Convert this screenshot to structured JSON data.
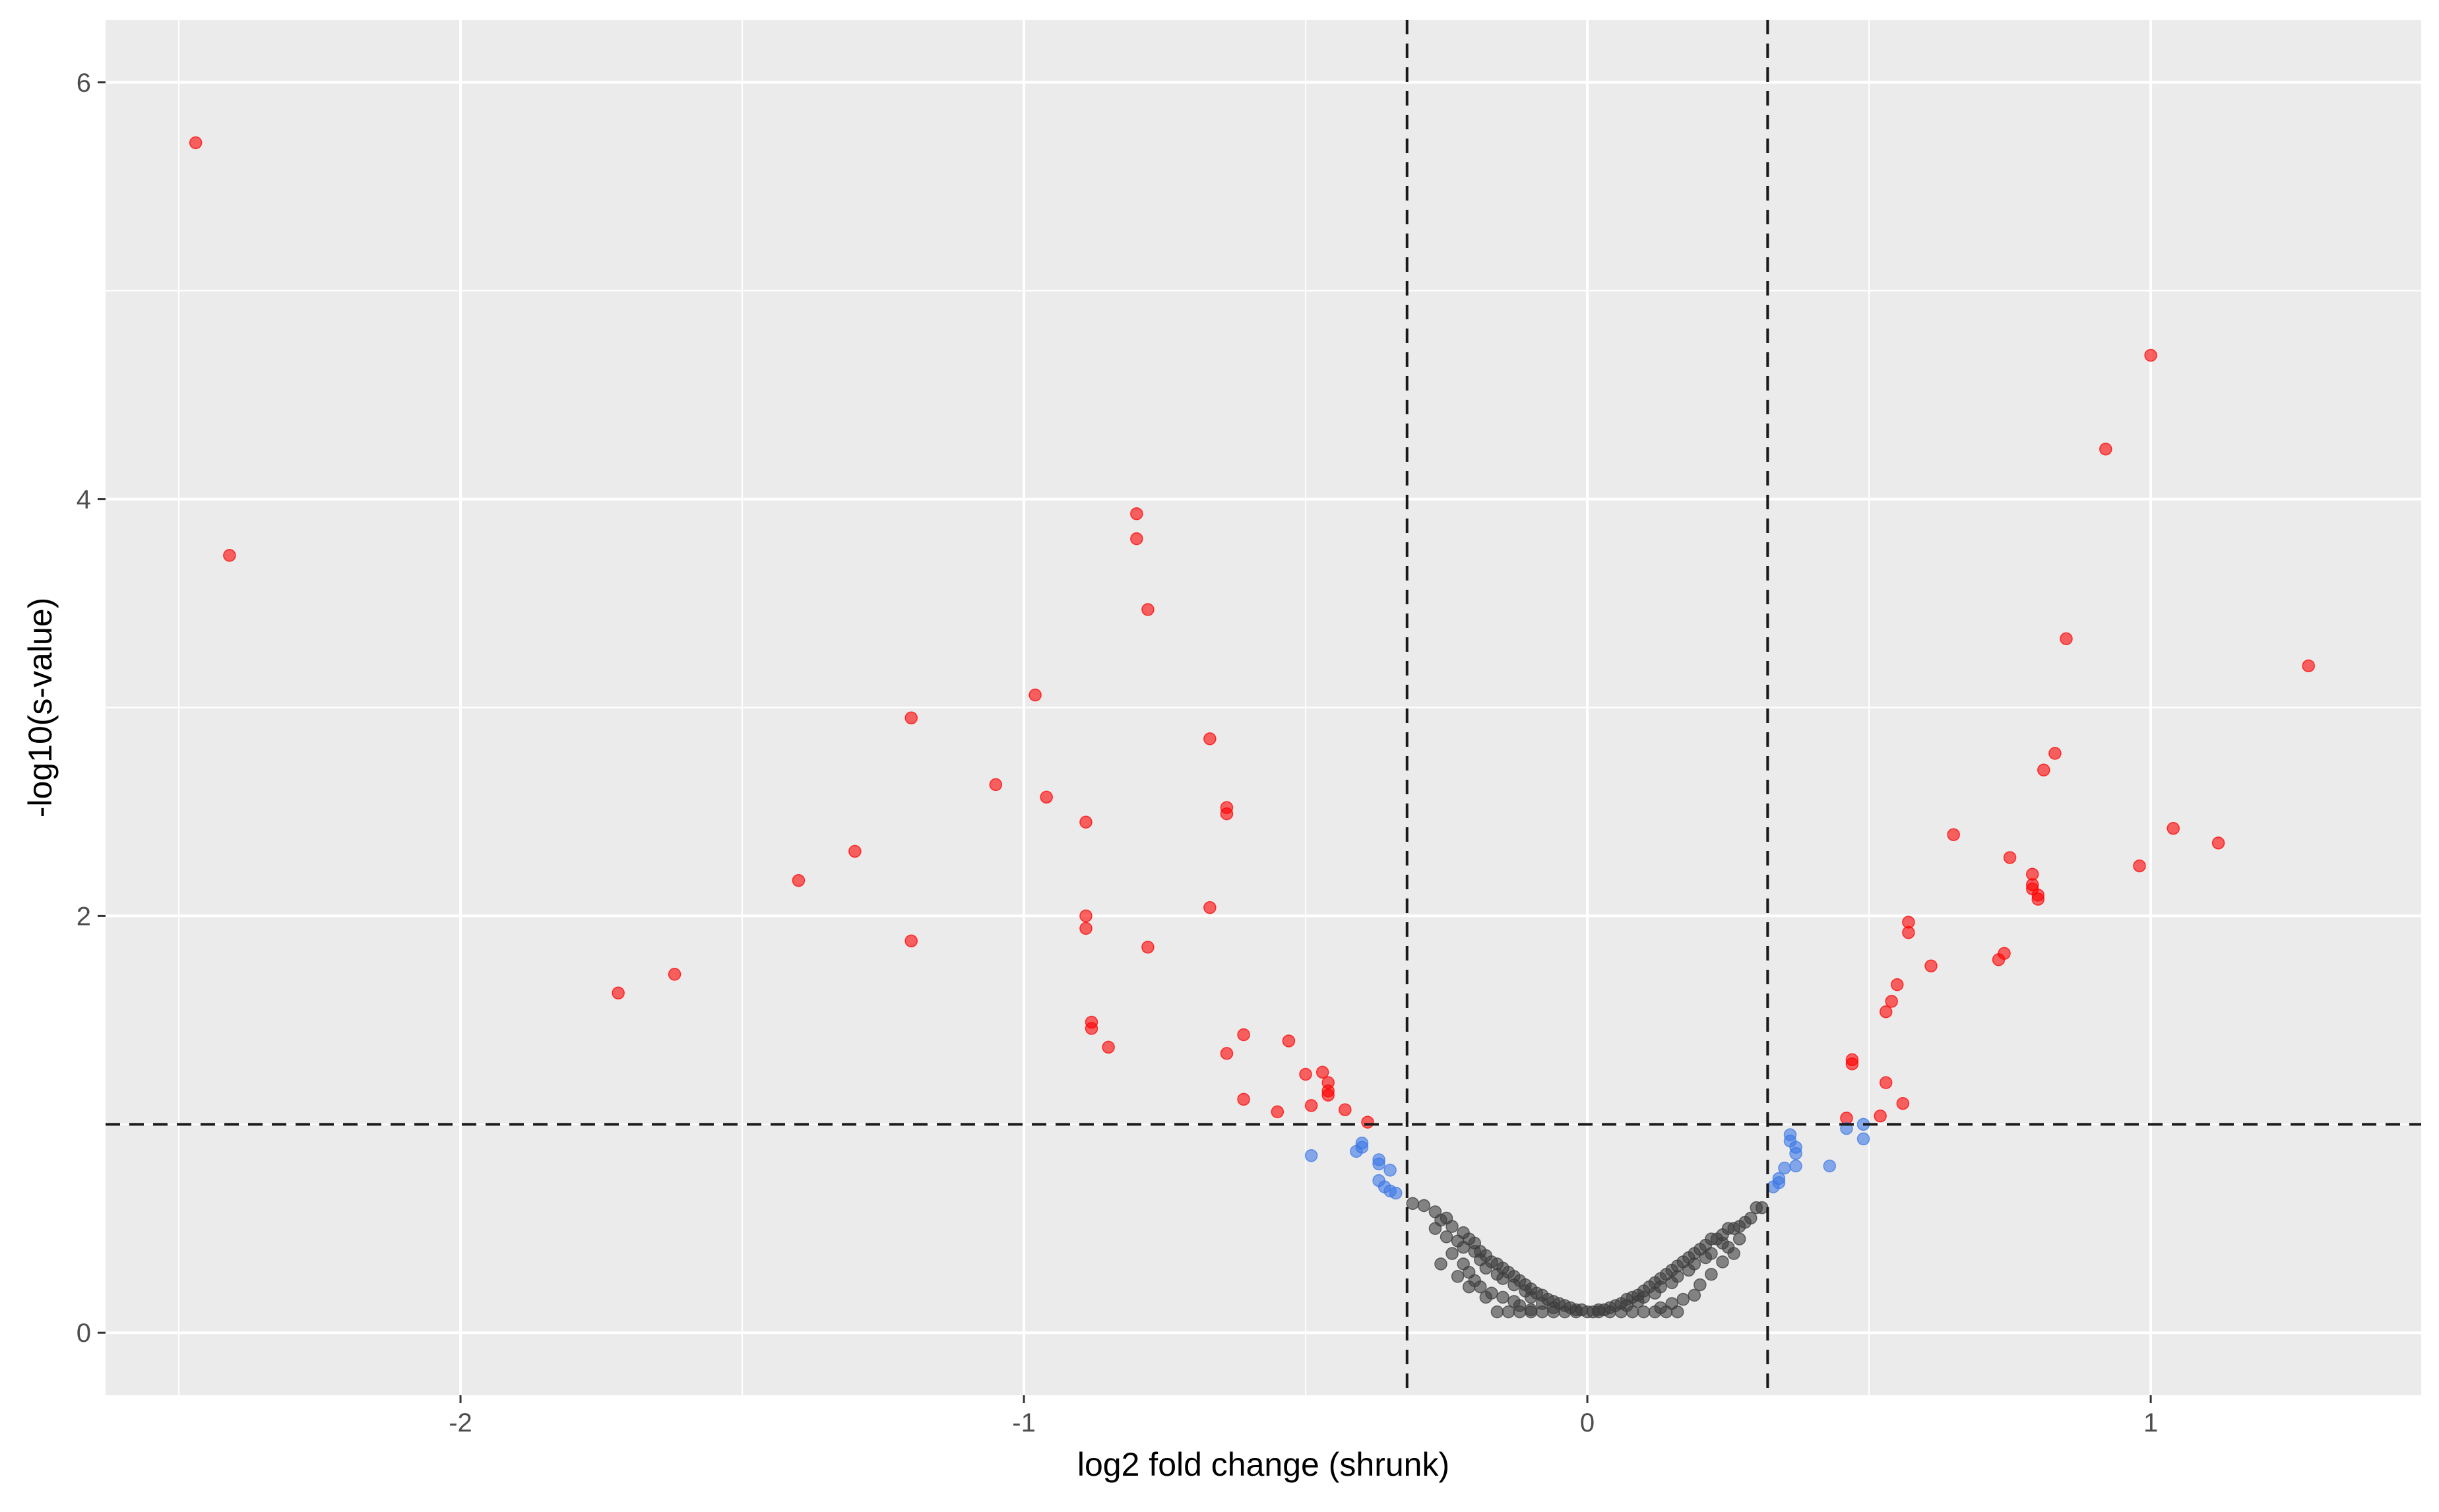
{
  "chart_data": {
    "type": "scatter",
    "xlabel": "log2 fold change (shrunk)",
    "ylabel": "-log10(s-value)",
    "xlim": [
      -2.63,
      1.48
    ],
    "ylim": [
      -0.3,
      6.3
    ],
    "x_ticks": [
      -2,
      -1,
      0,
      1
    ],
    "x_tick_labels": [
      "-2",
      "-1",
      "0",
      "1"
    ],
    "y_ticks": [
      0,
      2,
      4,
      6
    ],
    "y_tick_labels": [
      "0",
      "2",
      "4",
      "6"
    ],
    "grid": true,
    "legend": "none",
    "threshold_lines": {
      "vertical": [
        -0.32,
        0.32
      ],
      "horizontal": [
        1.0
      ],
      "style": "dashed"
    },
    "colors": {
      "panel_background": "#ebebeb",
      "grid": "#ffffff",
      "significant": "#ff0000",
      "fold_change_only": "#3c78e6",
      "not_significant": "#3c3c3c",
      "threshold_line": "#1a1a1a"
    },
    "series": [
      {
        "color": "#ff0000",
        "points": [
          [
            -2.47,
            5.71
          ],
          [
            -2.41,
            3.73
          ],
          [
            -1.72,
            1.63
          ],
          [
            -1.62,
            1.72
          ],
          [
            -1.4,
            2.17
          ],
          [
            -1.3,
            2.31
          ],
          [
            -1.2,
            2.95
          ],
          [
            -1.2,
            1.88
          ],
          [
            -1.05,
            2.63
          ],
          [
            -0.98,
            3.06
          ],
          [
            -0.96,
            2.57
          ],
          [
            -0.89,
            2.45
          ],
          [
            -0.89,
            2.0
          ],
          [
            -0.89,
            1.94
          ],
          [
            -0.88,
            1.49
          ],
          [
            -0.88,
            1.46
          ],
          [
            -0.85,
            1.37
          ],
          [
            -0.8,
            3.93
          ],
          [
            -0.8,
            3.81
          ],
          [
            -0.78,
            3.47
          ],
          [
            -0.78,
            1.85
          ],
          [
            -0.67,
            2.85
          ],
          [
            -0.67,
            2.04
          ],
          [
            -0.64,
            2.52
          ],
          [
            -0.64,
            2.49
          ],
          [
            -0.64,
            1.34
          ],
          [
            -0.61,
            1.43
          ],
          [
            -0.61,
            1.12
          ],
          [
            -0.55,
            1.06
          ],
          [
            -0.53,
            1.4
          ],
          [
            -0.5,
            1.24
          ],
          [
            -0.49,
            1.09
          ],
          [
            -0.47,
            1.25
          ],
          [
            -0.46,
            1.2
          ],
          [
            -0.46,
            1.14
          ],
          [
            -0.46,
            1.16
          ],
          [
            -0.43,
            1.07
          ],
          [
            -0.39,
            1.01
          ],
          [
            0.46,
            1.03
          ],
          [
            0.47,
            1.31
          ],
          [
            0.47,
            1.29
          ],
          [
            0.52,
            1.04
          ],
          [
            0.53,
            1.2
          ],
          [
            0.53,
            1.54
          ],
          [
            0.54,
            1.59
          ],
          [
            0.55,
            1.67
          ],
          [
            0.56,
            1.1
          ],
          [
            0.57,
            1.97
          ],
          [
            0.57,
            1.92
          ],
          [
            0.61,
            1.76
          ],
          [
            0.65,
            2.39
          ],
          [
            0.73,
            1.79
          ],
          [
            0.74,
            1.82
          ],
          [
            0.75,
            2.28
          ],
          [
            0.79,
            2.2
          ],
          [
            0.79,
            2.15
          ],
          [
            0.79,
            2.13
          ],
          [
            0.8,
            2.1
          ],
          [
            0.8,
            2.08
          ],
          [
            0.81,
            2.7
          ],
          [
            0.83,
            2.78
          ],
          [
            0.85,
            3.33
          ],
          [
            0.92,
            4.24
          ],
          [
            0.98,
            2.24
          ],
          [
            1.0,
            4.69
          ],
          [
            1.04,
            2.42
          ],
          [
            1.12,
            2.35
          ],
          [
            1.28,
            3.2
          ]
        ]
      },
      {
        "color": "#3c78e6",
        "points": [
          [
            -0.49,
            0.85
          ],
          [
            -0.41,
            0.87
          ],
          [
            -0.4,
            0.91
          ],
          [
            -0.4,
            0.89
          ],
          [
            -0.37,
            0.83
          ],
          [
            -0.37,
            0.81
          ],
          [
            -0.37,
            0.73
          ],
          [
            -0.36,
            0.7
          ],
          [
            -0.35,
            0.78
          ],
          [
            -0.35,
            0.68
          ],
          [
            -0.34,
            0.67
          ],
          [
            0.33,
            0.7
          ],
          [
            0.34,
            0.72
          ],
          [
            0.34,
            0.74
          ],
          [
            0.35,
            0.79
          ],
          [
            0.36,
            0.95
          ],
          [
            0.36,
            0.92
          ],
          [
            0.37,
            0.86
          ],
          [
            0.37,
            0.89
          ],
          [
            0.37,
            0.8
          ],
          [
            0.43,
            0.8
          ],
          [
            0.46,
            0.98
          ],
          [
            0.49,
            0.93
          ],
          [
            0.49,
            1.0
          ]
        ]
      },
      {
        "color": "#3c3c3c",
        "points": [
          [
            -0.31,
            0.62
          ],
          [
            -0.29,
            0.61
          ],
          [
            -0.27,
            0.58
          ],
          [
            -0.26,
            0.54
          ],
          [
            -0.25,
            0.55
          ],
          [
            -0.24,
            0.51
          ],
          [
            -0.22,
            0.48
          ],
          [
            -0.21,
            0.45
          ],
          [
            -0.2,
            0.43
          ],
          [
            -0.19,
            0.39
          ],
          [
            -0.18,
            0.37
          ],
          [
            -0.17,
            0.34
          ],
          [
            -0.16,
            0.33
          ],
          [
            -0.15,
            0.31
          ],
          [
            -0.14,
            0.29
          ],
          [
            -0.13,
            0.27
          ],
          [
            -0.12,
            0.25
          ],
          [
            -0.11,
            0.23
          ],
          [
            -0.1,
            0.21
          ],
          [
            -0.09,
            0.19
          ],
          [
            -0.08,
            0.18
          ],
          [
            -0.07,
            0.16
          ],
          [
            -0.06,
            0.15
          ],
          [
            -0.05,
            0.14
          ],
          [
            -0.04,
            0.13
          ],
          [
            -0.03,
            0.12
          ],
          [
            -0.02,
            0.11
          ],
          [
            -0.01,
            0.11
          ],
          [
            0.0,
            0.1
          ],
          [
            -0.27,
            0.5
          ],
          [
            -0.25,
            0.46
          ],
          [
            -0.23,
            0.44
          ],
          [
            -0.22,
            0.41
          ],
          [
            -0.2,
            0.39
          ],
          [
            -0.19,
            0.35
          ],
          [
            -0.18,
            0.31
          ],
          [
            -0.16,
            0.28
          ],
          [
            -0.15,
            0.26
          ],
          [
            -0.13,
            0.23
          ],
          [
            -0.11,
            0.2
          ],
          [
            -0.1,
            0.17
          ],
          [
            -0.08,
            0.14
          ],
          [
            -0.06,
            0.12
          ],
          [
            -0.24,
            0.38
          ],
          [
            -0.22,
            0.33
          ],
          [
            -0.21,
            0.29
          ],
          [
            -0.2,
            0.25
          ],
          [
            -0.19,
            0.22
          ],
          [
            -0.17,
            0.19
          ],
          [
            -0.15,
            0.17
          ],
          [
            -0.13,
            0.15
          ],
          [
            -0.12,
            0.13
          ],
          [
            -0.1,
            0.11
          ],
          [
            -0.16,
            0.1
          ],
          [
            -0.14,
            0.1
          ],
          [
            -0.12,
            0.1
          ],
          [
            -0.1,
            0.1
          ],
          [
            -0.08,
            0.1
          ],
          [
            -0.06,
            0.1
          ],
          [
            -0.04,
            0.1
          ],
          [
            -0.02,
            0.1
          ],
          [
            -0.26,
            0.33
          ],
          [
            -0.23,
            0.27
          ],
          [
            -0.21,
            0.22
          ],
          [
            -0.18,
            0.17
          ],
          [
            0.31,
            0.6
          ],
          [
            0.3,
            0.6
          ],
          [
            0.29,
            0.55
          ],
          [
            0.28,
            0.53
          ],
          [
            0.27,
            0.51
          ],
          [
            0.26,
            0.5
          ],
          [
            0.25,
            0.5
          ],
          [
            0.24,
            0.47
          ],
          [
            0.23,
            0.45
          ],
          [
            0.22,
            0.45
          ],
          [
            0.21,
            0.42
          ],
          [
            0.2,
            0.4
          ],
          [
            0.19,
            0.38
          ],
          [
            0.18,
            0.36
          ],
          [
            0.17,
            0.34
          ],
          [
            0.16,
            0.32
          ],
          [
            0.15,
            0.3
          ],
          [
            0.14,
            0.28
          ],
          [
            0.13,
            0.26
          ],
          [
            0.12,
            0.24
          ],
          [
            0.11,
            0.22
          ],
          [
            0.1,
            0.2
          ],
          [
            0.09,
            0.18
          ],
          [
            0.08,
            0.17
          ],
          [
            0.07,
            0.16
          ],
          [
            0.06,
            0.14
          ],
          [
            0.05,
            0.13
          ],
          [
            0.04,
            0.12
          ],
          [
            0.03,
            0.11
          ],
          [
            0.02,
            0.11
          ],
          [
            0.01,
            0.1
          ],
          [
            0.27,
            0.45
          ],
          [
            0.25,
            0.41
          ],
          [
            0.24,
            0.43
          ],
          [
            0.22,
            0.38
          ],
          [
            0.21,
            0.36
          ],
          [
            0.19,
            0.33
          ],
          [
            0.18,
            0.3
          ],
          [
            0.16,
            0.27
          ],
          [
            0.15,
            0.24
          ],
          [
            0.13,
            0.22
          ],
          [
            0.12,
            0.19
          ],
          [
            0.1,
            0.17
          ],
          [
            0.09,
            0.15
          ],
          [
            0.07,
            0.13
          ],
          [
            0.2,
            0.23
          ],
          [
            0.19,
            0.18
          ],
          [
            0.17,
            0.16
          ],
          [
            0.15,
            0.14
          ],
          [
            0.13,
            0.12
          ],
          [
            0.16,
            0.1
          ],
          [
            0.14,
            0.1
          ],
          [
            0.12,
            0.1
          ],
          [
            0.1,
            0.1
          ],
          [
            0.08,
            0.1
          ],
          [
            0.06,
            0.1
          ],
          [
            0.04,
            0.1
          ],
          [
            0.02,
            0.1
          ],
          [
            0.22,
            0.28
          ],
          [
            0.24,
            0.34
          ],
          [
            0.26,
            0.38
          ]
        ]
      }
    ]
  }
}
